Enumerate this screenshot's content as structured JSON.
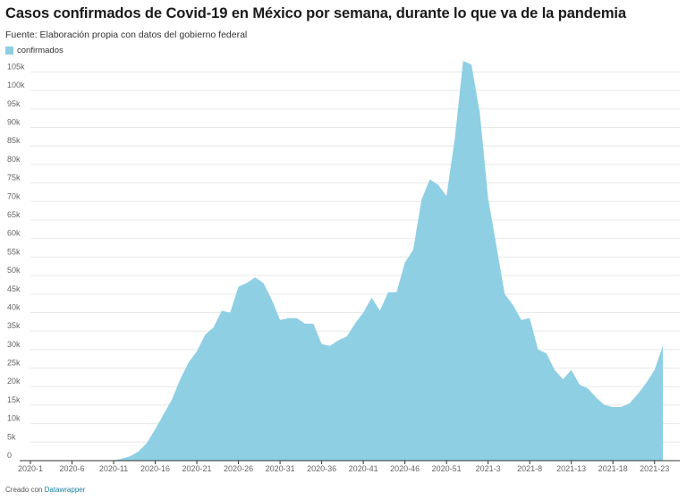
{
  "header": {
    "title": "Casos confirmados de Covid-19 en México por semana, durante lo que va de la pandemia",
    "subtitle": "Fuente: Elaboración propia con datos del gobierno federal"
  },
  "footer": {
    "prefix": "Creado con",
    "brand": "Datawrapper"
  },
  "colors": {
    "area": "#8ecfe4",
    "grid": "#e8e8e8",
    "axis": "#333333"
  },
  "chart_data": {
    "type": "area",
    "title": "Casos confirmados de Covid-19 en México por semana, durante lo que va de la pandemia",
    "xlabel": "",
    "ylabel": "",
    "legend": [
      "confirmados"
    ],
    "legend_position": "top-left",
    "grid": true,
    "ylim": [
      0,
      108000
    ],
    "y_ticks": [
      0,
      5000,
      10000,
      15000,
      20000,
      25000,
      30000,
      35000,
      40000,
      45000,
      50000,
      55000,
      60000,
      65000,
      70000,
      75000,
      80000,
      85000,
      90000,
      95000,
      100000,
      105000
    ],
    "y_tick_labels": [
      "0",
      "5k",
      "10k",
      "15k",
      "20k",
      "25k",
      "30k",
      "35k",
      "40k",
      "45k",
      "50k",
      "55k",
      "60k",
      "65k",
      "70k",
      "75k",
      "80k",
      "85k",
      "90k",
      "95k",
      "100k",
      "105k"
    ],
    "x_tick_indices": [
      0,
      5,
      10,
      15,
      20,
      25,
      30,
      35,
      40,
      45,
      50,
      55,
      60,
      65,
      70,
      75
    ],
    "x_tick_labels": [
      "2020-1",
      "2020-6",
      "2020-11",
      "2020-16",
      "2020-21",
      "2020-26",
      "2020-31",
      "2020-36",
      "2020-41",
      "2020-46",
      "2020-51",
      "2021-3",
      "2021-8",
      "2021-13",
      "2021-18",
      "2021-23"
    ],
    "series": [
      {
        "name": "confirmados",
        "values": [
          0,
          0,
          0,
          0,
          0,
          0,
          0,
          0,
          0,
          0,
          100,
          500,
          1200,
          2500,
          4800,
          8500,
          12500,
          16500,
          22000,
          26500,
          29500,
          34000,
          36000,
          40500,
          40000,
          47000,
          48000,
          49500,
          48000,
          43500,
          38000,
          38500,
          38500,
          37000,
          37000,
          31500,
          31000,
          32500,
          33500,
          37000,
          40000,
          44000,
          40500,
          45500,
          45500,
          53500,
          57000,
          70500,
          76000,
          74500,
          71500,
          87000,
          108000,
          107000,
          94000,
          71000,
          58000,
          45000,
          42000,
          38000,
          38500,
          30000,
          29000,
          24500,
          22000,
          24500,
          20500,
          19500,
          17000,
          15000,
          14500,
          14500,
          15500,
          18000,
          21000,
          24500,
          31000
        ]
      }
    ]
  }
}
